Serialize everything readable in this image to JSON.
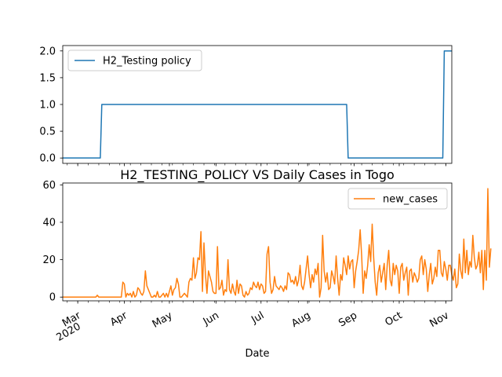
{
  "chart_data": [
    {
      "type": "line",
      "title": "",
      "xlabel": "",
      "ylabel": "",
      "ylim": [
        -0.1,
        2.1
      ],
      "yticks": [
        0.0,
        0.5,
        1.0,
        1.5,
        2.0
      ],
      "ytick_labels": [
        "0.0",
        "0.5",
        "1.0",
        "1.5",
        "2.0"
      ],
      "legend_position": "top-left",
      "series": [
        {
          "name": "H2_Testing policy",
          "color": "#1f77b4",
          "points": [
            [
              "2020-02-20",
              0
            ],
            [
              "2020-03-16",
              0
            ],
            [
              "2020-03-17",
              1
            ],
            [
              "2020-08-27",
              1
            ],
            [
              "2020-08-28",
              0
            ],
            [
              "2020-10-30",
              0
            ],
            [
              "2020-10-31",
              2
            ],
            [
              "2020-11-05",
              2
            ]
          ]
        }
      ]
    },
    {
      "type": "line",
      "title": "H2_TESTING_POLICY VS Daily Cases in Togo",
      "xlabel": "Date",
      "ylabel": "",
      "ylim": [
        -2,
        61
      ],
      "yticks": [
        0,
        20,
        40,
        60
      ],
      "ytick_labels": [
        "0",
        "20",
        "40",
        "60"
      ],
      "legend_position": "top-right",
      "x_range": [
        "2020-02-20",
        "2020-11-05"
      ],
      "x_ticks": [
        {
          "date": "2020-03-01",
          "label": "Mar",
          "sublabel": "2020"
        },
        {
          "date": "2020-04-01",
          "label": "Apr"
        },
        {
          "date": "2020-05-01",
          "label": "May"
        },
        {
          "date": "2020-06-01",
          "label": "Jun"
        },
        {
          "date": "2020-07-01",
          "label": "Jul"
        },
        {
          "date": "2020-08-01",
          "label": "Aug"
        },
        {
          "date": "2020-09-01",
          "label": "Sep"
        },
        {
          "date": "2020-10-01",
          "label": "Oct"
        },
        {
          "date": "2020-11-01",
          "label": "Nov"
        }
      ],
      "series": [
        {
          "name": "new_cases",
          "color": "#ff7f0e",
          "start_date": "2020-02-20",
          "values": [
            0,
            0,
            0,
            0,
            0,
            0,
            0,
            0,
            0,
            0,
            0,
            0,
            0,
            0,
            0,
            0,
            0,
            0,
            0,
            0,
            0,
            0,
            0,
            1,
            0,
            0,
            0,
            0,
            0,
            0,
            0,
            0,
            0,
            0,
            0,
            0,
            0,
            0,
            0,
            0,
            8,
            7,
            0,
            2,
            1,
            2,
            0,
            3,
            0,
            1,
            5,
            4,
            2,
            1,
            3,
            14,
            6,
            4,
            2,
            0,
            0,
            1,
            0,
            3,
            0,
            0,
            1,
            2,
            0,
            2,
            0,
            3,
            6,
            1,
            4,
            5,
            10,
            7,
            0,
            0,
            1,
            2,
            1,
            0,
            8,
            10,
            9,
            21,
            10,
            13,
            21,
            20,
            35,
            3,
            29,
            12,
            2,
            14,
            11,
            8,
            3,
            2,
            2,
            27,
            4,
            5,
            9,
            1,
            4,
            3,
            20,
            4,
            2,
            7,
            3,
            1,
            9,
            2,
            7,
            6,
            1,
            0,
            3,
            1,
            2,
            5,
            4,
            8,
            6,
            5,
            8,
            4,
            7,
            6,
            2,
            3,
            23,
            27,
            8,
            2,
            4,
            11,
            6,
            5,
            4,
            6,
            5,
            3,
            6,
            4,
            13,
            12,
            8,
            9,
            7,
            11,
            6,
            9,
            17,
            6,
            4,
            8,
            15,
            22,
            12,
            5,
            12,
            8,
            15,
            12,
            18,
            0,
            5,
            33,
            14,
            8,
            13,
            4,
            5,
            14,
            11,
            7,
            22,
            10,
            1,
            12,
            9,
            21,
            17,
            12,
            22,
            15,
            19,
            20,
            5,
            14,
            19,
            25,
            36,
            22,
            2,
            14,
            10,
            17,
            28,
            19,
            39,
            21,
            8,
            1,
            13,
            17,
            8,
            13,
            18,
            4,
            17,
            25,
            9,
            6,
            18,
            12,
            17,
            14,
            2,
            16,
            18,
            9,
            13,
            16,
            1,
            14,
            15,
            8,
            13,
            11,
            8,
            10,
            20,
            22,
            12,
            20,
            15,
            3,
            12,
            18,
            7,
            10,
            16,
            11,
            25,
            25,
            13,
            11,
            19,
            15,
            9,
            17,
            17,
            12,
            9,
            15,
            5,
            7,
            23,
            14,
            10,
            31,
            13,
            25,
            12,
            19,
            16,
            33,
            21,
            15,
            17,
            24,
            13,
            25,
            4,
            25,
            9,
            58,
            16,
            26
          ]
        }
      ]
    }
  ]
}
